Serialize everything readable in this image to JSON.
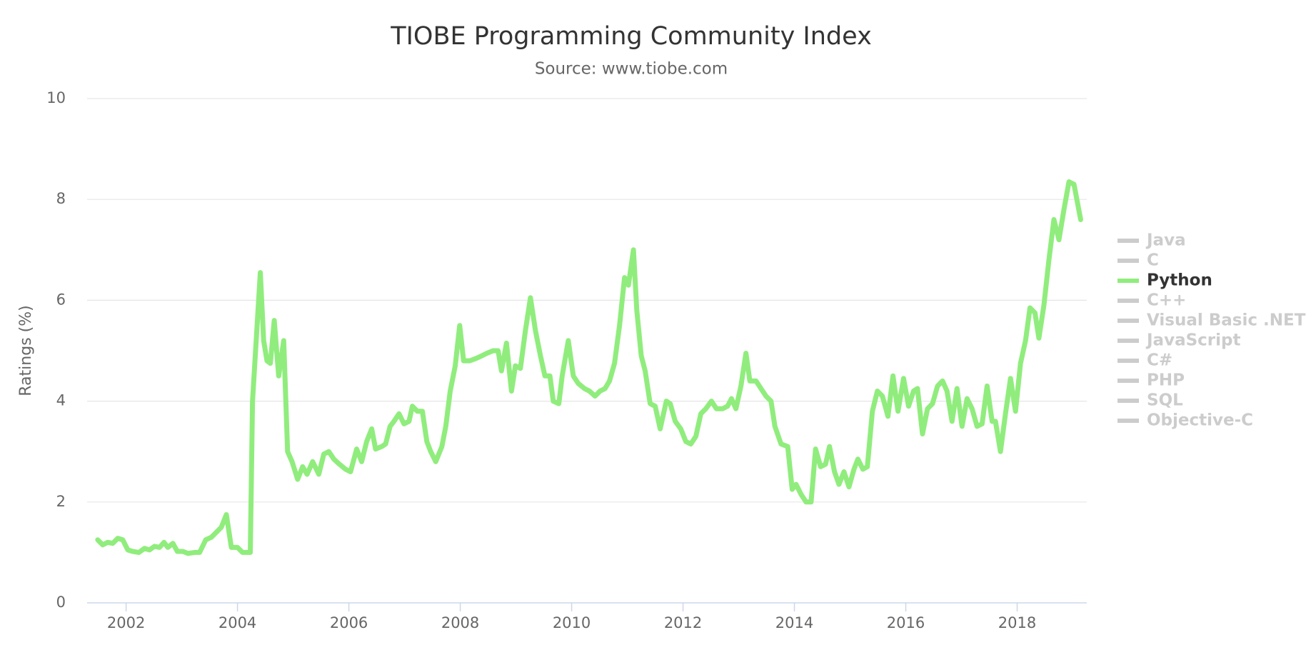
{
  "chart_data": {
    "type": "line",
    "title": "TIOBE Programming Community Index",
    "subtitle": "Source: www.tiobe.com",
    "y_axis_label": "Ratings (%)",
    "xlim": [
      2001.3,
      2019.25
    ],
    "xticks": [
      2002,
      2004,
      2006,
      2008,
      2010,
      2012,
      2014,
      2016,
      2018
    ],
    "ylim": [
      0,
      10
    ],
    "yticks": [
      0,
      2,
      4,
      6,
      8,
      10
    ],
    "grid": true,
    "legend_position": "right",
    "x": [
      2001.49,
      2001.58,
      2001.67,
      2001.76,
      2001.85,
      2001.94,
      2002.03,
      2002.12,
      2002.23,
      2002.33,
      2002.42,
      2002.51,
      2002.6,
      2002.68,
      2002.75,
      2002.84,
      2002.92,
      2003.02,
      2003.11,
      2003.23,
      2003.32,
      2003.43,
      2003.53,
      2003.62,
      2003.71,
      2003.8,
      2003.89,
      2004.0,
      2004.09,
      2004.23,
      2004.27,
      2004.41,
      2004.47,
      2004.53,
      2004.59,
      2004.66,
      2004.74,
      2004.83,
      2004.9,
      2004.98,
      2005.08,
      2005.17,
      2005.25,
      2005.35,
      2005.46,
      2005.55,
      2005.64,
      2005.73,
      2005.83,
      2005.94,
      2006.03,
      2006.14,
      2006.23,
      2006.32,
      2006.41,
      2006.48,
      2006.59,
      2006.66,
      2006.74,
      2006.81,
      2006.9,
      2006.99,
      2007.08,
      2007.14,
      2007.23,
      2007.32,
      2007.4,
      2007.47,
      2007.56,
      2007.67,
      2007.74,
      2007.82,
      2007.91,
      2007.99,
      2008.06,
      2008.17,
      2008.29,
      2008.39,
      2008.48,
      2008.59,
      2008.68,
      2008.74,
      2008.83,
      2008.92,
      2008.99,
      2009.08,
      2009.17,
      2009.26,
      2009.35,
      2009.44,
      2009.52,
      2009.61,
      2009.67,
      2009.77,
      2009.83,
      2009.94,
      2010.03,
      2010.12,
      2010.23,
      2010.32,
      2010.42,
      2010.51,
      2010.6,
      2010.68,
      2010.77,
      2010.86,
      2010.95,
      2011.02,
      2011.11,
      2011.17,
      2011.25,
      2011.32,
      2011.41,
      2011.5,
      2011.59,
      2011.7,
      2011.77,
      2011.86,
      2011.96,
      2012.05,
      2012.14,
      2012.23,
      2012.32,
      2012.41,
      2012.51,
      2012.6,
      2012.71,
      2012.8,
      2012.87,
      2012.95,
      2013.04,
      2013.13,
      2013.2,
      2013.31,
      2013.4,
      2013.49,
      2013.58,
      2013.65,
      2013.76,
      2013.88,
      2013.96,
      2014.03,
      2014.12,
      2014.21,
      2014.3,
      2014.38,
      2014.47,
      2014.56,
      2014.63,
      2014.72,
      2014.8,
      2014.89,
      2014.98,
      2015.07,
      2015.14,
      2015.23,
      2015.31,
      2015.4,
      2015.49,
      2015.58,
      2015.68,
      2015.77,
      2015.86,
      2015.96,
      2016.05,
      2016.14,
      2016.21,
      2016.3,
      2016.39,
      2016.48,
      2016.57,
      2016.66,
      2016.74,
      2016.83,
      2016.92,
      2017.01,
      2017.1,
      2017.19,
      2017.28,
      2017.37,
      2017.46,
      2017.55,
      2017.61,
      2017.7,
      2017.79,
      2017.88,
      2017.97,
      2018.06,
      2018.15,
      2018.23,
      2018.32,
      2018.39,
      2018.48,
      2018.57,
      2018.66,
      2018.75,
      2018.84,
      2018.93,
      2019.02,
      2019.14
    ],
    "series": [
      {
        "name": "Java",
        "visible": false
      },
      {
        "name": "C",
        "visible": false
      },
      {
        "name": "Python",
        "visible": true,
        "color": "#90ed7d",
        "values": [
          1.25,
          1.15,
          1.2,
          1.18,
          1.28,
          1.25,
          1.05,
          1.02,
          1.0,
          1.08,
          1.05,
          1.12,
          1.1,
          1.2,
          1.1,
          1.18,
          1.02,
          1.02,
          0.98,
          1.0,
          1.0,
          1.25,
          1.3,
          1.4,
          1.5,
          1.75,
          1.1,
          1.1,
          1.0,
          1.0,
          4.0,
          6.55,
          5.2,
          4.8,
          4.75,
          5.6,
          4.5,
          5.2,
          3.0,
          2.8,
          2.45,
          2.7,
          2.55,
          2.8,
          2.55,
          2.95,
          3.0,
          2.85,
          2.75,
          2.65,
          2.6,
          3.05,
          2.8,
          3.2,
          3.45,
          3.05,
          3.1,
          3.15,
          3.5,
          3.6,
          3.75,
          3.55,
          3.6,
          3.9,
          3.8,
          3.8,
          3.2,
          3.0,
          2.8,
          3.1,
          3.5,
          4.2,
          4.7,
          5.5,
          4.8,
          4.8,
          4.85,
          4.9,
          4.95,
          5.0,
          5.0,
          4.6,
          5.15,
          4.2,
          4.7,
          4.65,
          5.4,
          6.05,
          5.4,
          4.9,
          4.5,
          4.5,
          4.0,
          3.95,
          4.5,
          5.2,
          4.5,
          4.35,
          4.25,
          4.2,
          4.1,
          4.2,
          4.25,
          4.4,
          4.75,
          5.5,
          6.45,
          6.3,
          7.0,
          5.8,
          4.9,
          4.6,
          3.95,
          3.9,
          3.45,
          4.0,
          3.95,
          3.6,
          3.45,
          3.2,
          3.15,
          3.3,
          3.75,
          3.85,
          4.0,
          3.85,
          3.85,
          3.9,
          4.05,
          3.85,
          4.3,
          4.95,
          4.4,
          4.4,
          4.25,
          4.1,
          4.0,
          3.5,
          3.15,
          3.1,
          2.25,
          2.35,
          2.15,
          2.0,
          2.0,
          3.05,
          2.7,
          2.75,
          3.1,
          2.6,
          2.35,
          2.6,
          2.3,
          2.65,
          2.85,
          2.65,
          2.7,
          3.8,
          4.2,
          4.1,
          3.7,
          4.5,
          3.8,
          4.45,
          3.9,
          4.2,
          4.25,
          3.35,
          3.85,
          3.95,
          4.3,
          4.4,
          4.2,
          3.6,
          4.25,
          3.5,
          4.05,
          3.85,
          3.5,
          3.55,
          4.3,
          3.6,
          3.6,
          3.0,
          3.75,
          4.45,
          3.8,
          4.75,
          5.2,
          5.85,
          5.75,
          5.25,
          5.9,
          6.8,
          7.6,
          7.2,
          7.8,
          8.35,
          8.3,
          7.6
        ]
      },
      {
        "name": "C++",
        "visible": false
      },
      {
        "name": "Visual Basic .NET",
        "visible": false
      },
      {
        "name": "JavaScript",
        "visible": false
      },
      {
        "name": "C#",
        "visible": false
      },
      {
        "name": "PHP",
        "visible": false
      },
      {
        "name": "SQL",
        "visible": false
      },
      {
        "name": "Objective-C",
        "visible": false
      }
    ]
  }
}
